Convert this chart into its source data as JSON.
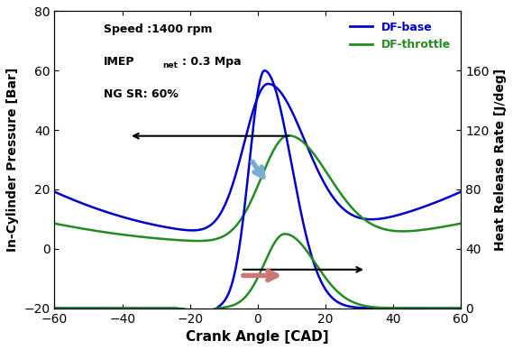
{
  "xlabel": "Crank Angle [CAD]",
  "ylabel_left": "In-Cylinder Pressure [Bar]",
  "ylabel_right": "Heat Release Rate [J/deg]",
  "xlim": [
    -60,
    60
  ],
  "ylim_left": [
    -20,
    80
  ],
  "ylim_right": [
    0,
    200
  ],
  "xticks": [
    -60,
    -40,
    -20,
    0,
    20,
    40,
    60
  ],
  "yticks_left": [
    -20,
    0,
    20,
    40,
    60,
    80
  ],
  "yticks_right": [
    0,
    40,
    80,
    120,
    160
  ],
  "legend_colors_base": "#0000cc",
  "legend_colors_throttle": "#228B22",
  "background_color": "#ffffff",
  "arrow_left_color": "#000000",
  "arrow_right_color": "#000000",
  "blue_arrow_color": "#7aadd4",
  "pink_arrow_color": "#cc7777"
}
